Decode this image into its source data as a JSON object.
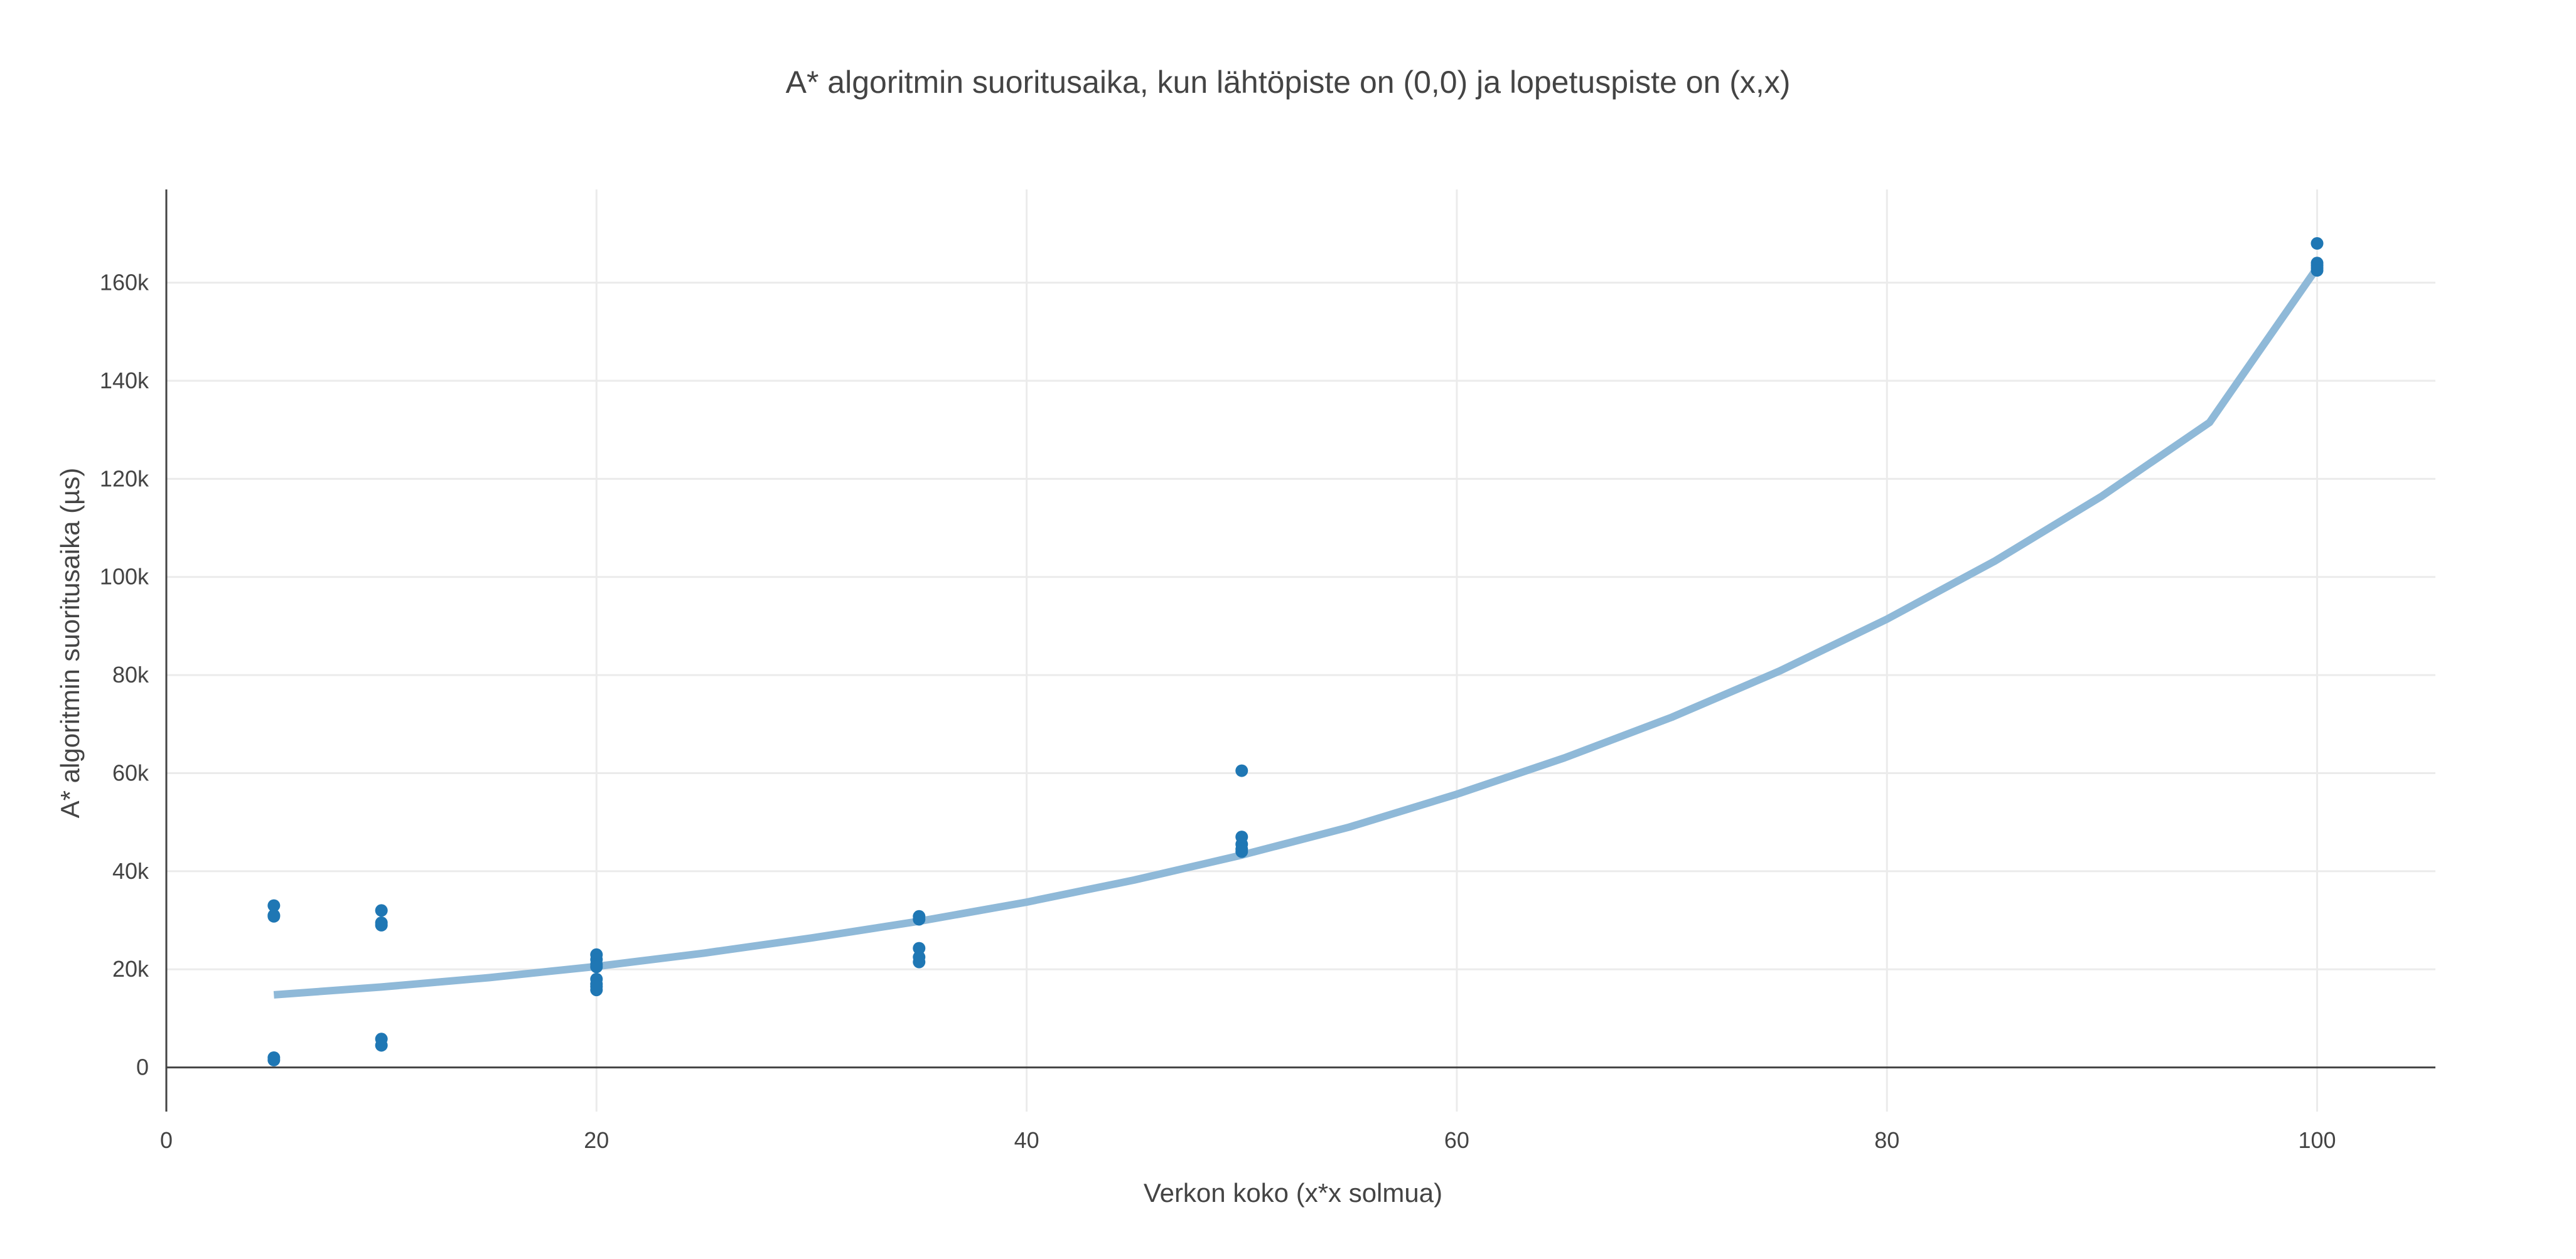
{
  "chart_data": {
    "type": "scatter",
    "title": "A* algoritmin suoritusaika, kun lähtöpiste on (0,0) ja lopetuspiste on (x,x)",
    "xlabel": "Verkon koko (x*x solmua)",
    "ylabel": "A* algoritmin suoritusaika (µs)",
    "xlim": [
      0,
      105.5
    ],
    "ylim": [
      -9000,
      179000
    ],
    "x_ticks": [
      0,
      20,
      40,
      60,
      80,
      100
    ],
    "x_tick_labels": [
      "0",
      "20",
      "40",
      "60",
      "80",
      "100"
    ],
    "y_ticks": [
      0,
      20000,
      40000,
      60000,
      80000,
      100000,
      120000,
      140000,
      160000
    ],
    "y_tick_labels": [
      "0",
      "20k",
      "40k",
      "60k",
      "80k",
      "100k",
      "120k",
      "140k",
      "160k"
    ],
    "grid": true,
    "legend": "none",
    "series": [
      {
        "type": "scatter",
        "color": "#1f77b4",
        "x": [
          5,
          5,
          5,
          5,
          5,
          10,
          10,
          10,
          10,
          10,
          20,
          20,
          20,
          20,
          20,
          20,
          20,
          20,
          35,
          35,
          35,
          35,
          35,
          50,
          50,
          50,
          50,
          50,
          100,
          100,
          100,
          100,
          100
        ],
        "y": [
          33000,
          31000,
          30800,
          2000,
          1500,
          32000,
          29500,
          29000,
          5800,
          4500,
          23000,
          22000,
          21000,
          20500,
          18000,
          17000,
          16500,
          15800,
          30800,
          30200,
          24300,
          22500,
          21500,
          60500,
          47000,
          45500,
          44500,
          44000,
          168000,
          164000,
          163500,
          163000,
          162500
        ]
      },
      {
        "type": "line",
        "color": "#8fb9d8",
        "x": [
          5,
          10,
          15,
          20,
          25,
          30,
          35,
          40,
          45,
          50,
          55,
          60,
          65,
          70,
          75,
          80,
          85,
          90,
          95,
          100
        ],
        "y": [
          14800,
          16400,
          18300,
          20600,
          23300,
          26400,
          29800,
          33700,
          38200,
          43300,
          49000,
          55700,
          63100,
          71400,
          80800,
          91400,
          103200,
          116500,
          131500,
          163000
        ]
      }
    ]
  }
}
